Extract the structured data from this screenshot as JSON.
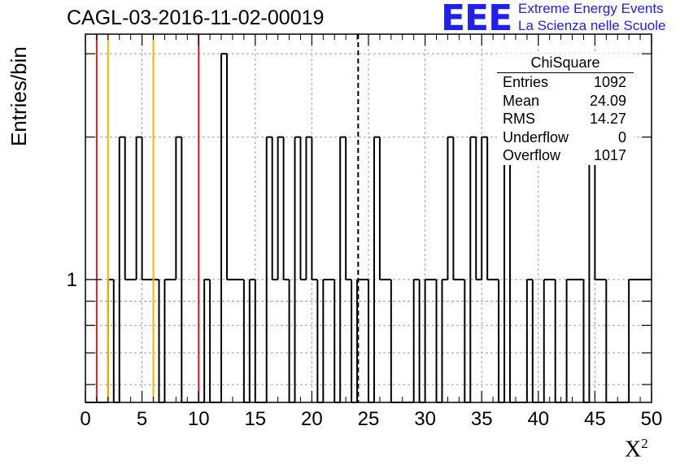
{
  "header": {
    "title": "CAGL-03-2016-11-02-00019"
  },
  "logo": {
    "mark": "EEE",
    "line1": "Extreme Energy Events",
    "line2": "La Scienza nelle Scuole",
    "color": "#1f1ff0"
  },
  "stats_box": {
    "title": "ChiSquare",
    "rows": [
      {
        "label": "Entries",
        "value": "1092"
      },
      {
        "label": "Mean",
        "value": "24.09"
      },
      {
        "label": "RMS",
        "value": "14.27"
      },
      {
        "label": "Underflow",
        "value": "0"
      },
      {
        "label": "Overflow",
        "value": "1017"
      }
    ]
  },
  "chart_data": {
    "type": "histogram",
    "title": "CAGL-03-2016-11-02-00019",
    "xlabel": "X",
    "xlabel_superscript": "2",
    "ylabel": "Entries/bin",
    "xlim": [
      0,
      50
    ],
    "ylim": [
      0.55,
      3.3
    ],
    "y_scale": "log",
    "grid": true,
    "x_ticks": [
      0,
      5,
      10,
      15,
      20,
      25,
      30,
      35,
      40,
      45,
      50
    ],
    "y_tick_labels": [
      {
        "value": 1,
        "label": "1"
      }
    ],
    "bin_width": 0.5,
    "bins_x": [
      0,
      0.5,
      1,
      1.5,
      2,
      2.5,
      3,
      3.5,
      4,
      4.5,
      5,
      5.5,
      6,
      6.5,
      7,
      7.5,
      8,
      8.5,
      9,
      9.5,
      10,
      10.5,
      11,
      11.5,
      12,
      12.5,
      13,
      13.5,
      14,
      14.5,
      15,
      15.5,
      16,
      16.5,
      17,
      17.5,
      18,
      18.5,
      19,
      19.5,
      20,
      20.5,
      21,
      21.5,
      22,
      22.5,
      23,
      23.5,
      24,
      24.5,
      25,
      25.5,
      26,
      26.5,
      27,
      27.5,
      28,
      28.5,
      29,
      29.5,
      30,
      30.5,
      31,
      31.5,
      32,
      32.5,
      33,
      33.5,
      34,
      34.5,
      35,
      35.5,
      36,
      36.5,
      37,
      37.5,
      38,
      38.5,
      39,
      39.5,
      40,
      40.5,
      41,
      41.5,
      42,
      42.5,
      43,
      43.5,
      44,
      44.5,
      45,
      45.5,
      46,
      46.5,
      47,
      47.5,
      48,
      48.5,
      49,
      49.5
    ],
    "bins_y": [
      0,
      0,
      0,
      0,
      1,
      0,
      2,
      1,
      1,
      2,
      1,
      1,
      1,
      0,
      1,
      1,
      2,
      0,
      0,
      0,
      0,
      1,
      0,
      0,
      3,
      1,
      1,
      1,
      0,
      1,
      0,
      0,
      2,
      1,
      2,
      1,
      0,
      2,
      1,
      2,
      1,
      0,
      1,
      1,
      0,
      2,
      1,
      0,
      1,
      1,
      0,
      2,
      1,
      1,
      0,
      0,
      0,
      0,
      1,
      0,
      1,
      1,
      0,
      1,
      2,
      1,
      1,
      0,
      2,
      1,
      2,
      1,
      1,
      0,
      2,
      0,
      0,
      0,
      1,
      0,
      0,
      1,
      1,
      0,
      0,
      1,
      1,
      1,
      0,
      2,
      1,
      1,
      0,
      0,
      0,
      0,
      1,
      1,
      1,
      1
    ],
    "reference_lines": [
      {
        "x": 1,
        "color": "#e02020",
        "style": "solid"
      },
      {
        "x": 2,
        "color": "#f0b800",
        "style": "solid"
      },
      {
        "x": 6,
        "color": "#f0b800",
        "style": "solid"
      },
      {
        "x": 10,
        "color": "#e02020",
        "style": "solid"
      },
      {
        "x": 24.09,
        "color": "#000000",
        "style": "dashed"
      }
    ],
    "colors": {
      "histogram": "#000000",
      "grid": "#a0a0a0",
      "axes": "#000000"
    }
  }
}
